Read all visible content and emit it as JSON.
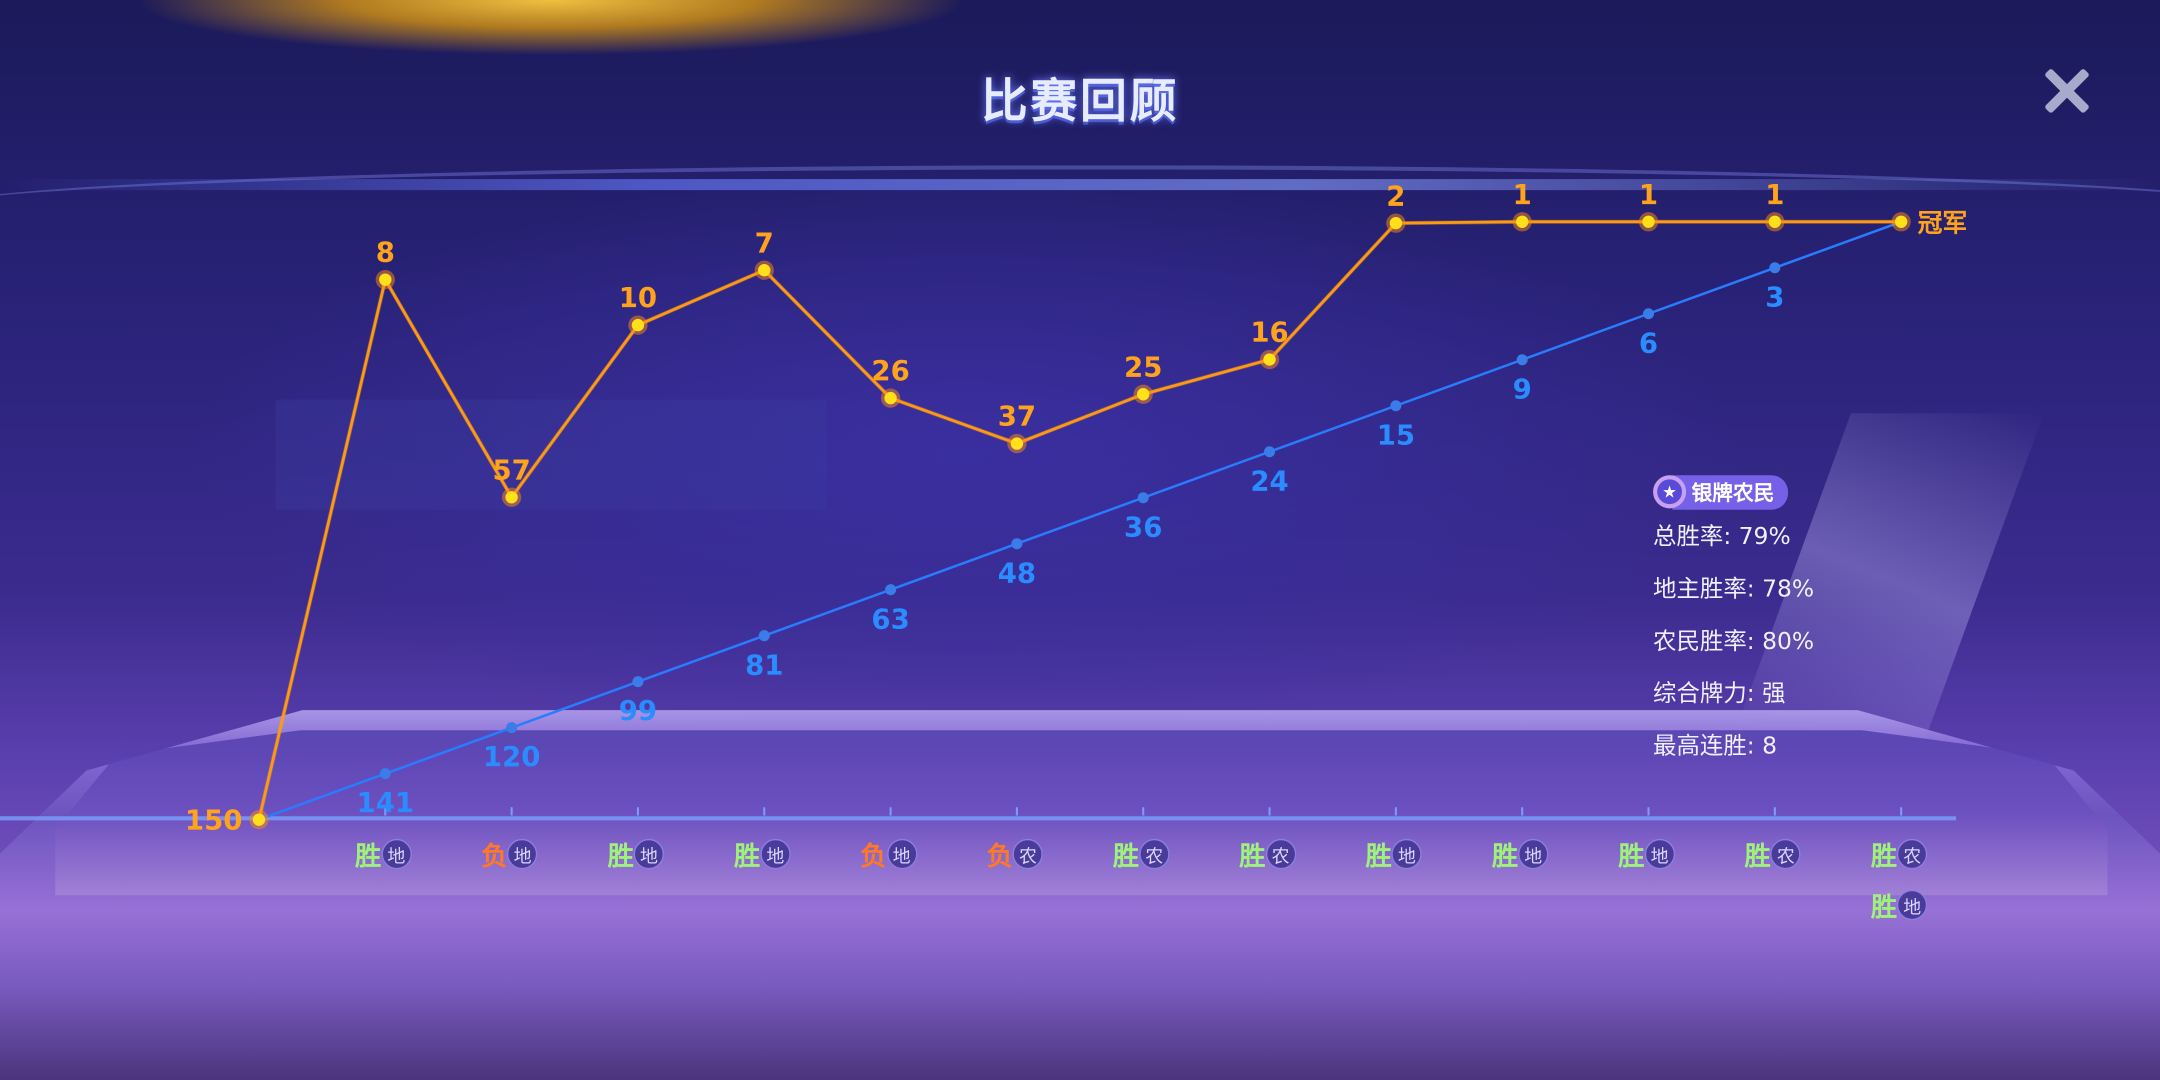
{
  "header": {
    "title": "比赛回顾",
    "close_icon": "close-icon"
  },
  "chart_data": {
    "type": "line",
    "series": [
      {
        "role": "my-rank",
        "color": "#ffa21c",
        "values": [
          150,
          8,
          57,
          10,
          7,
          26,
          37,
          25,
          16,
          2,
          1,
          1,
          1,
          1
        ]
      },
      {
        "role": "remaining-players",
        "color": "#2a7cff",
        "values": [
          150,
          141,
          120,
          99,
          81,
          63,
          48,
          36,
          24,
          15,
          9,
          6,
          3,
          1
        ]
      }
    ],
    "end_label": "冠军"
  },
  "results": [
    [
      {
        "r": "胜",
        "role": "地"
      }
    ],
    [
      {
        "r": "负",
        "role": "地"
      }
    ],
    [
      {
        "r": "胜",
        "role": "地"
      }
    ],
    [
      {
        "r": "胜",
        "role": "地"
      }
    ],
    [
      {
        "r": "负",
        "role": "地"
      }
    ],
    [
      {
        "r": "负",
        "role": "农"
      }
    ],
    [
      {
        "r": "胜",
        "role": "农"
      }
    ],
    [
      {
        "r": "胜",
        "role": "农"
      }
    ],
    [
      {
        "r": "胜",
        "role": "地"
      }
    ],
    [
      {
        "r": "胜",
        "role": "地"
      }
    ],
    [
      {
        "r": "胜",
        "role": "地"
      }
    ],
    [
      {
        "r": "胜",
        "role": "农"
      }
    ],
    [
      {
        "r": "胜",
        "role": "农"
      },
      {
        "r": "胜",
        "role": "地"
      }
    ]
  ],
  "colors": {
    "win": "#9ef27c",
    "lose": "#ff7828"
  },
  "stats": {
    "badge": "银牌农民",
    "lines": [
      "总胜率: 79%",
      "地主胜率: 78%",
      "农民胜率: 80%",
      "综合牌力: 强",
      "最高连胜: 8"
    ]
  }
}
